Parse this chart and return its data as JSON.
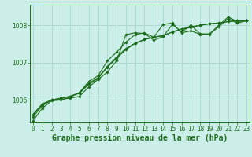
{
  "bg_color": "#cceee8",
  "line_color": "#1a6b1a",
  "grid_color": "#a8d8d0",
  "xlabel": "Graphe pression niveau de la mer (hPa)",
  "xlabel_fontsize": 7,
  "tick_fontsize": 5.5,
  "yticks": [
    1006,
    1007,
    1008
  ],
  "ylim": [
    1005.4,
    1008.55
  ],
  "xlim": [
    -0.3,
    23.3
  ],
  "xticks": [
    0,
    1,
    2,
    3,
    4,
    5,
    6,
    7,
    8,
    9,
    10,
    11,
    12,
    13,
    14,
    15,
    16,
    17,
    18,
    19,
    20,
    21,
    22,
    23
  ],
  "series": [
    [
      1005.55,
      1005.85,
      1006.0,
      1006.02,
      1006.05,
      1006.1,
      1006.35,
      1006.55,
      1006.75,
      1007.05,
      1007.75,
      1007.8,
      1007.78,
      1007.6,
      1007.7,
      1008.02,
      1007.82,
      1008.0,
      1007.77,
      1007.77,
      1008.0,
      1008.22,
      1008.1,
      1008.12
    ],
    [
      1005.6,
      1005.88,
      1006.0,
      1006.05,
      1006.1,
      1006.18,
      1006.42,
      1006.58,
      1006.88,
      1007.12,
      1007.35,
      1007.52,
      1007.62,
      1007.68,
      1007.72,
      1007.82,
      1007.9,
      1007.96,
      1008.0,
      1008.04,
      1008.06,
      1008.1,
      1008.12,
      1008.12
    ],
    [
      1005.62,
      1005.9,
      1006.0,
      1006.05,
      1006.1,
      1006.2,
      1006.45,
      1006.6,
      1006.9,
      1007.15,
      1007.38,
      1007.52,
      1007.62,
      1007.68,
      1007.73,
      1007.82,
      1007.9,
      1007.94,
      1008.0,
      1008.04,
      1008.06,
      1008.1,
      1008.12,
      1008.12
    ],
    [
      1005.45,
      1005.78,
      1005.98,
      1006.0,
      1006.08,
      1006.2,
      1006.5,
      1006.65,
      1007.05,
      1007.28,
      1007.55,
      1007.75,
      1007.8,
      1007.68,
      1008.02,
      1008.06,
      1007.8,
      1007.85,
      1007.76,
      1007.76,
      1007.96,
      1008.18,
      1008.06,
      1008.12
    ]
  ]
}
